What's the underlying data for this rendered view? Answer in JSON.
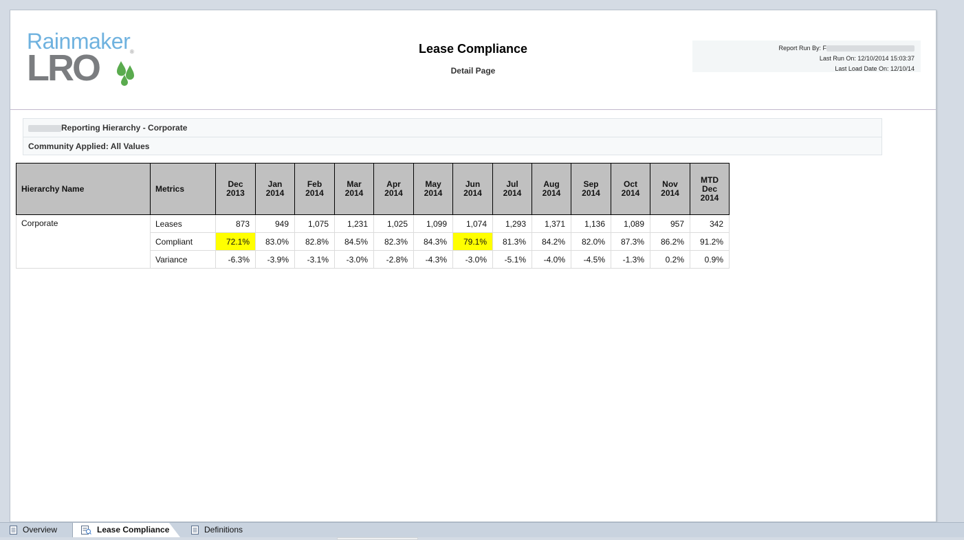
{
  "logo": {
    "top": "Rainmaker",
    "bottom": "LRO",
    "reg": "®"
  },
  "header": {
    "title": "Lease Compliance",
    "subtitle": "Detail Page",
    "report_run_by_label": "Report Run By:",
    "report_run_by_value": "F",
    "last_run_on": "Last Run On: 12/10/2014 15:03:37",
    "last_load_date_on": "Last Load Date On: 12/10/14"
  },
  "filters": {
    "reporting_hierarchy": "Reporting Hierarchy - Corporate",
    "community_applied": "Community Applied: All Values"
  },
  "table": {
    "headers": {
      "hierarchy": "Hierarchy Name",
      "metrics": "Metrics",
      "months": [
        [
          "Dec",
          "2013"
        ],
        [
          "Jan",
          "2014"
        ],
        [
          "Feb",
          "2014"
        ],
        [
          "Mar",
          "2014"
        ],
        [
          "Apr",
          "2014"
        ],
        [
          "May",
          "2014"
        ],
        [
          "Jun",
          "2014"
        ],
        [
          "Jul",
          "2014"
        ],
        [
          "Aug",
          "2014"
        ],
        [
          "Sep",
          "2014"
        ],
        [
          "Oct",
          "2014"
        ],
        [
          "Nov",
          "2014"
        ],
        [
          "MTD",
          "Dec",
          "2014"
        ]
      ]
    },
    "hierarchy_name": "Corporate",
    "rows": [
      {
        "metric": "Leases",
        "values": [
          "873",
          "949",
          "1,075",
          "1,231",
          "1,025",
          "1,099",
          "1,074",
          "1,293",
          "1,371",
          "1,136",
          "1,089",
          "957",
          "342"
        ],
        "highlight": []
      },
      {
        "metric": "Compliant",
        "values": [
          "72.1%",
          "83.0%",
          "82.8%",
          "84.5%",
          "82.3%",
          "84.3%",
          "79.1%",
          "81.3%",
          "84.2%",
          "82.0%",
          "87.3%",
          "86.2%",
          "91.2%"
        ],
        "highlight": [
          0,
          6
        ]
      },
      {
        "metric": "Variance",
        "values": [
          "-6.3%",
          "-3.9%",
          "-3.1%",
          "-3.0%",
          "-2.8%",
          "-4.3%",
          "-3.0%",
          "-5.1%",
          "-4.0%",
          "-4.5%",
          "-1.3%",
          "0.2%",
          "0.9%"
        ],
        "highlight": []
      }
    ],
    "highlight_color": "#ffff00"
  },
  "tabs": [
    {
      "label": "Overview",
      "icon": "document-icon",
      "active": false
    },
    {
      "label": "Lease Compliance",
      "icon": "report-icon",
      "active": true
    },
    {
      "label": "Definitions",
      "icon": "document-icon",
      "active": false
    }
  ],
  "colors": {
    "logo_blue": "#6fb2df",
    "logo_gray": "#7b7d80",
    "logo_green": "#5aab4e",
    "header_gray": "#c0c0c0"
  }
}
